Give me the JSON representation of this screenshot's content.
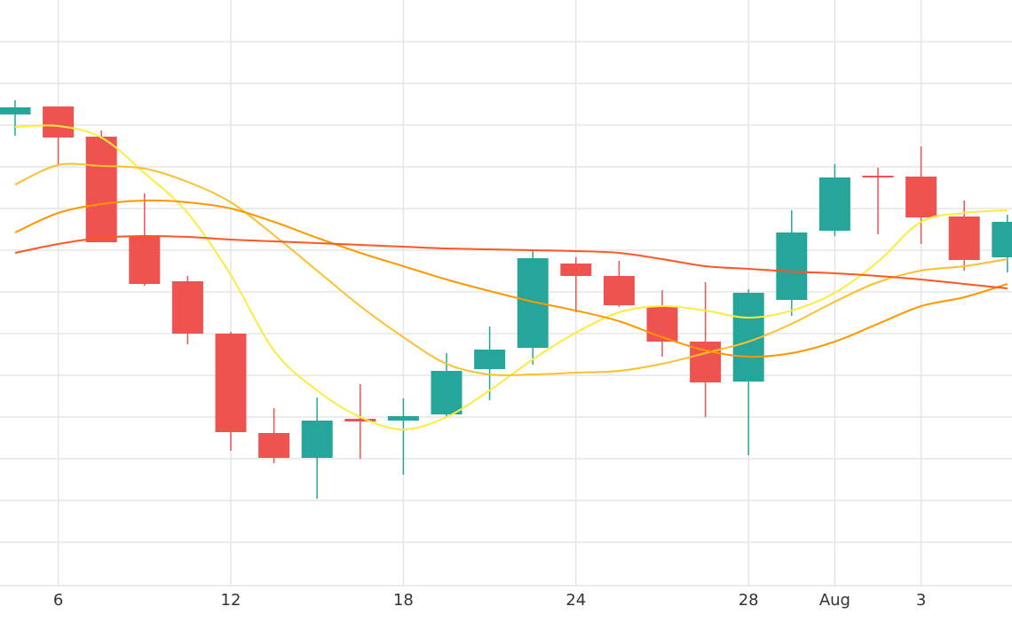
{
  "chart_data": {
    "type": "candlestick",
    "categories": [
      null,
      "6",
      null,
      null,
      null,
      "12",
      null,
      null,
      null,
      "18",
      null,
      null,
      null,
      "24",
      null,
      null,
      null,
      "28",
      null,
      "Aug",
      null,
      "3",
      null,
      null
    ],
    "open": [
      531,
      540,
      506,
      393,
      343,
      284,
      172,
      144,
      188,
      186,
      193,
      244,
      268,
      363,
      349,
      315,
      275,
      230,
      322,
      400,
      462,
      461,
      416,
      370
    ],
    "high": [
      547,
      540,
      513,
      442,
      349,
      286,
      200,
      212,
      227,
      211,
      262,
      292,
      378,
      370,
      366,
      333,
      342,
      334,
      423,
      475,
      471,
      495,
      434,
      418
    ],
    "low": [
      507,
      474,
      387,
      338,
      272,
      152,
      138,
      98,
      143,
      125,
      189,
      209,
      249,
      308,
      314,
      258,
      190,
      147,
      304,
      394,
      396,
      385,
      355,
      353
    ],
    "close": [
      539,
      505,
      387,
      340,
      284,
      173,
      144,
      186,
      185,
      191,
      242,
      266,
      369,
      349,
      316,
      275,
      229,
      330,
      398,
      460,
      460,
      415,
      367,
      410
    ],
    "up_color": "#26a69a",
    "down_color": "#ef5350",
    "series": [
      {
        "color": "#ffeb3b",
        "values": [
          517,
          518,
          505,
          465,
          420,
          350,
          265,
          220,
          190,
          176,
          190,
          220,
          255,
          285,
          308,
          315,
          310,
          302,
          310,
          330,
          365,
          410,
          420,
          423
        ]
      },
      {
        "color": "#fbc02d",
        "values": [
          452,
          474,
          473,
          470,
          455,
          432,
          395,
          355,
          315,
          280,
          250,
          238,
          238,
          240,
          242,
          250,
          262,
          275,
          295,
          320,
          342,
          355,
          360,
          368
        ]
      },
      {
        "color": "#ff9800",
        "values": [
          398,
          420,
          430,
          434,
          432,
          425,
          410,
          392,
          375,
          360,
          345,
          332,
          320,
          310,
          298,
          280,
          265,
          258,
          262,
          275,
          295,
          315,
          325,
          340
        ]
      },
      {
        "color": "#ff5722",
        "values": [
          375,
          385,
          392,
          394,
          393,
          390,
          388,
          386,
          384,
          382,
          380,
          379,
          378,
          377,
          375,
          368,
          360,
          357,
          354,
          352,
          349,
          345,
          340,
          335
        ]
      }
    ],
    "ylim": [
      0,
      660
    ],
    "yticks": [
      0,
      49,
      96,
      143,
      190,
      237,
      284,
      331,
      378,
      425,
      472,
      519,
      566,
      613
    ],
    "grid": true
  }
}
